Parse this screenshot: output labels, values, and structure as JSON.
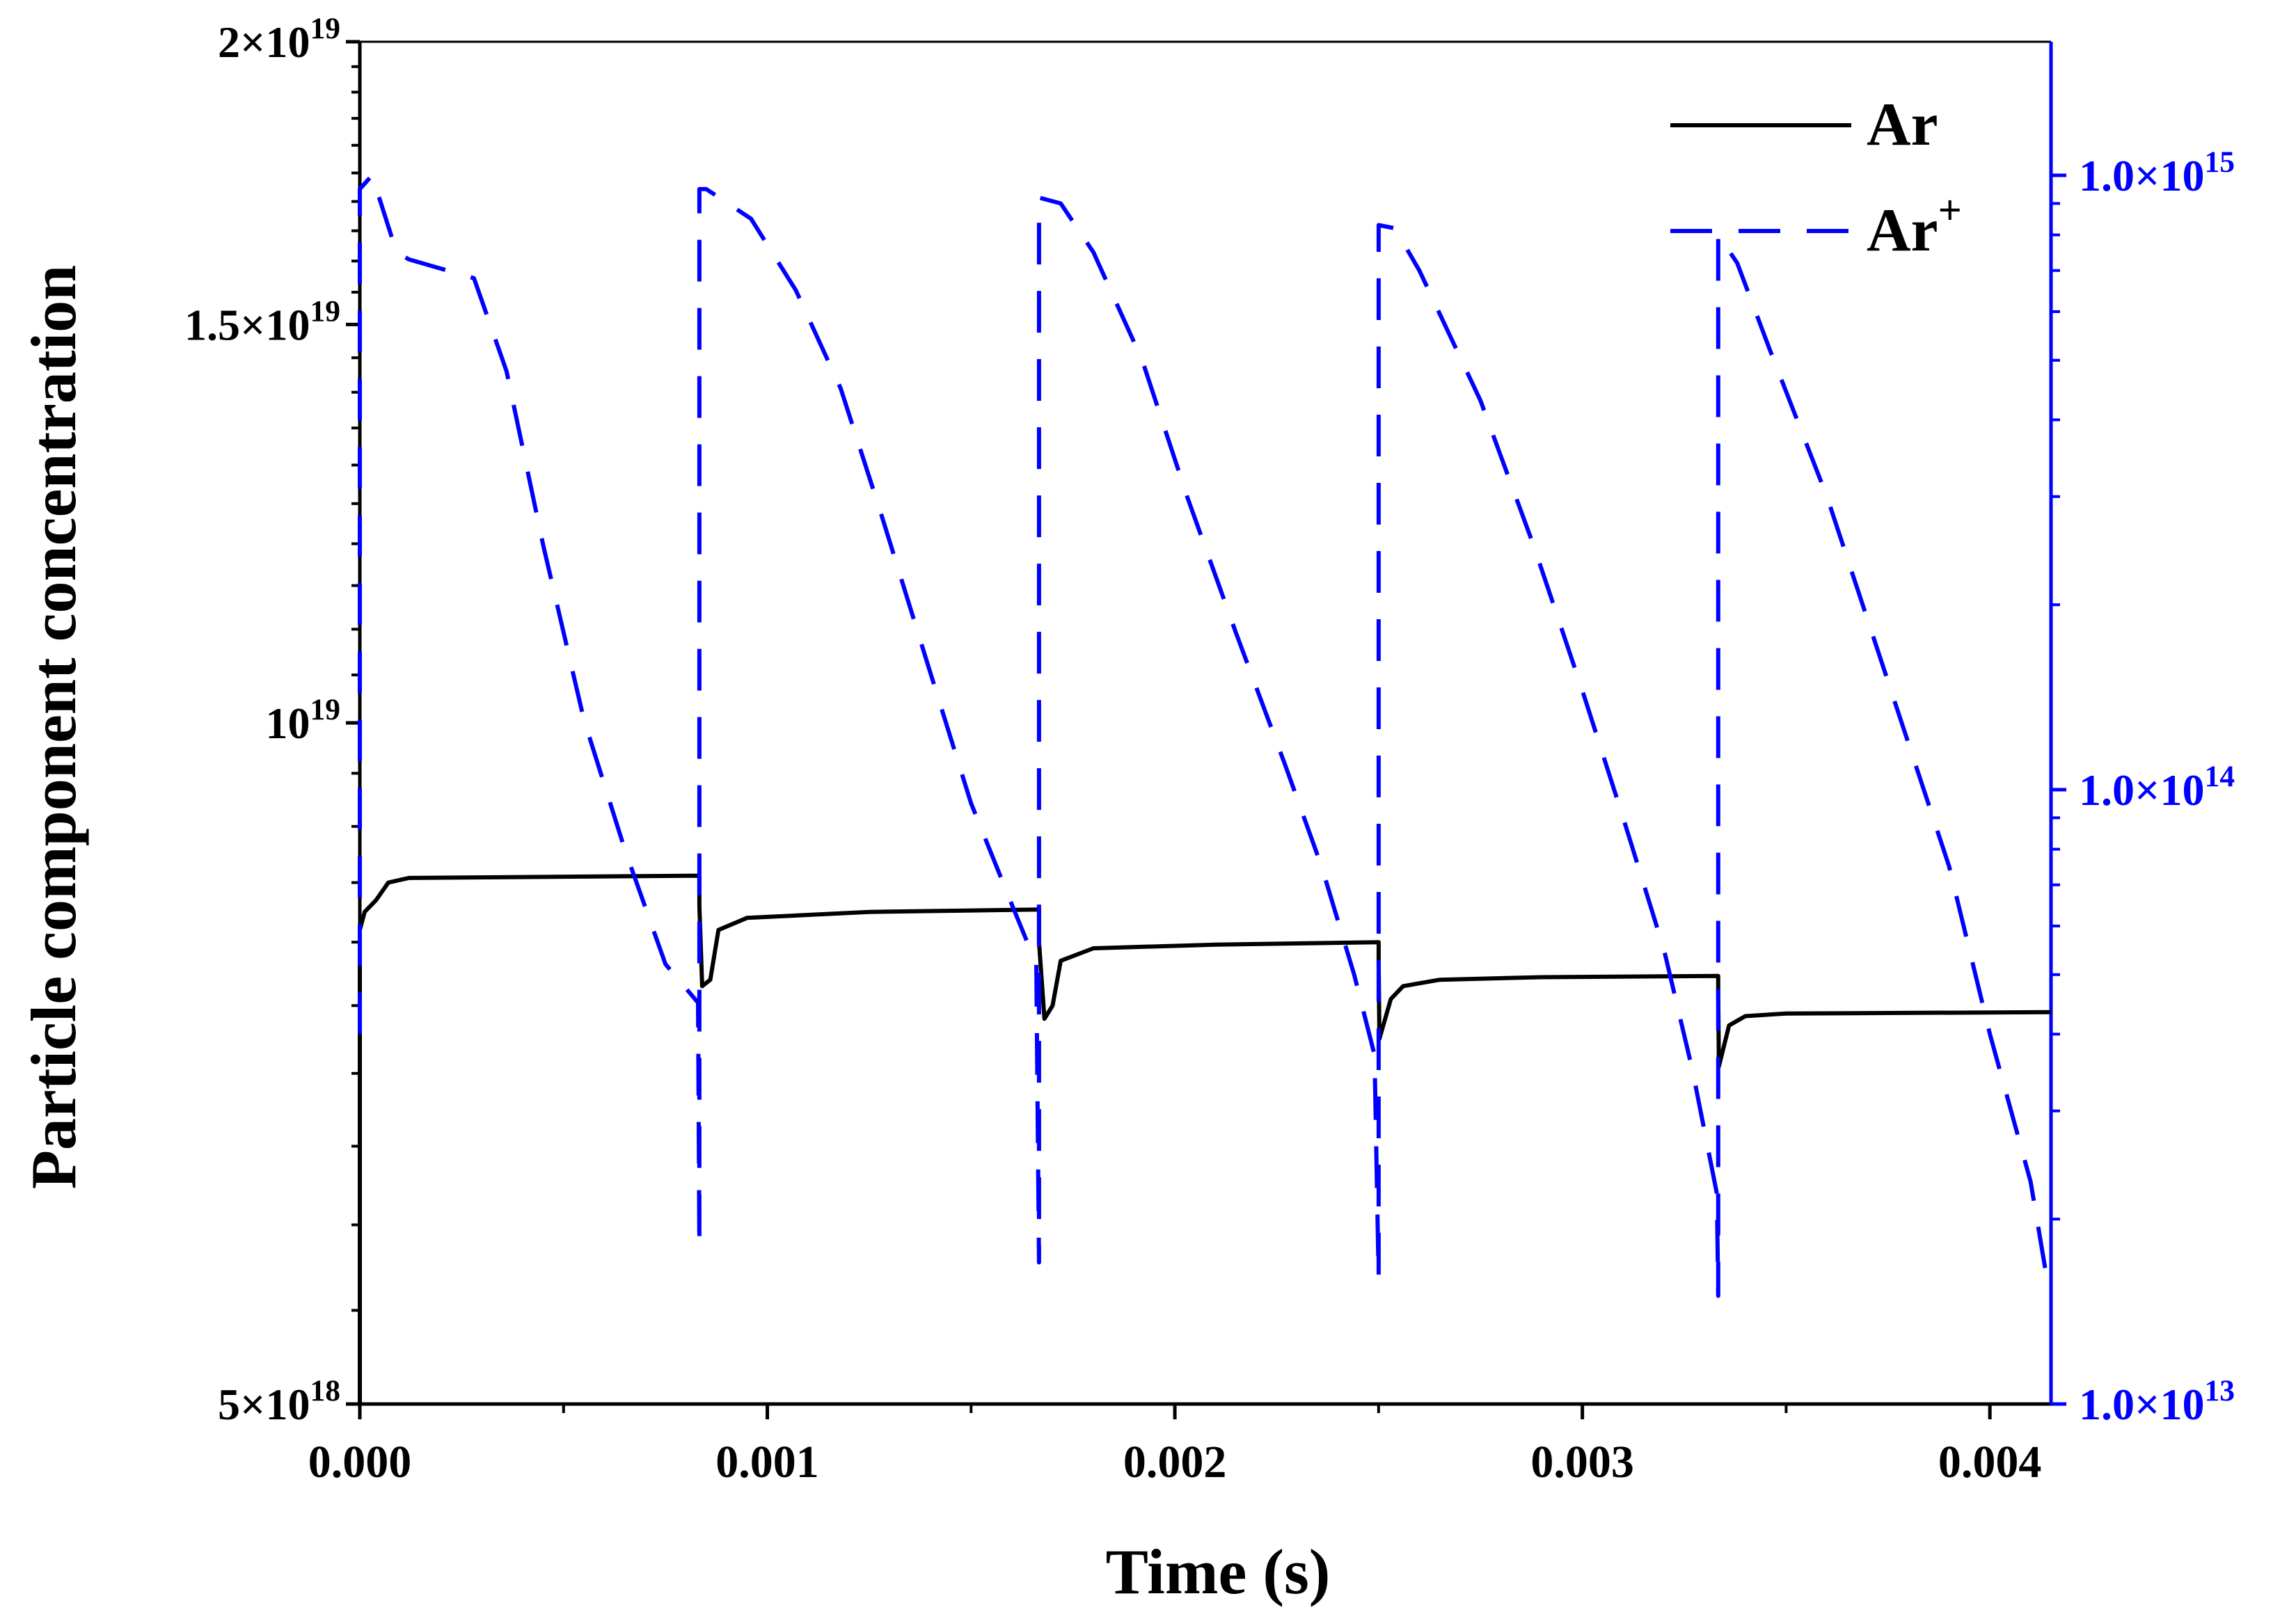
{
  "chart_data": {
    "type": "line",
    "x_axis": {
      "label": "Time (s)",
      "range": [
        0.0,
        0.00415
      ],
      "ticks": [
        0.0,
        0.001,
        0.002,
        0.003,
        0.004
      ],
      "tick_labels": [
        "0.000",
        "0.001",
        "0.002",
        "0.003",
        "0.004"
      ],
      "minor_ticks": [
        0.0005,
        0.0015,
        0.0025,
        0.0035
      ]
    },
    "y_axis_left": {
      "label": "Particle component concentration",
      "scale": "log",
      "range": [
        5e+18,
        2e+19
      ],
      "ticks": [
        5e+18,
        1e+19,
        1.5e+19,
        2e+19
      ],
      "tick_labels": [
        {
          "mantissa": "5×10",
          "exp": "18"
        },
        {
          "mantissa": "10",
          "exp": "19"
        },
        {
          "mantissa": "1.5×10",
          "exp": "19"
        },
        {
          "mantissa": "2×10",
          "exp": "19"
        }
      ],
      "color": "#000000"
    },
    "y_axis_right": {
      "label": "",
      "scale": "log",
      "range": [
        10000000000000.0,
        1650000000000000.0
      ],
      "ticks": [
        10000000000000.0,
        100000000000000.0,
        1000000000000000.0
      ],
      "tick_labels": [
        {
          "mantissa": "1.0×10",
          "exp": "13"
        },
        {
          "mantissa": "1.0×10",
          "exp": "14"
        },
        {
          "mantissa": "1.0×10",
          "exp": "15"
        }
      ],
      "color": "#0000ff"
    },
    "legend": {
      "position": "top-right",
      "entries": [
        {
          "name": "Ar",
          "sup": "",
          "color": "#000000",
          "dash": "solid"
        },
        {
          "name": "Ar",
          "sup": "+",
          "color": "#0000ff",
          "dash": "dashed"
        }
      ]
    },
    "series": [
      {
        "name": "Ar",
        "axis": "left",
        "color": "#000000",
        "style": "solid",
        "points": [
          [
            0.0,
            5e+18
          ],
          [
            0.0,
            8.1e+18
          ],
          [
            1.2e-05,
            8.25e+18
          ],
          [
            4e-05,
            8.35e+18
          ],
          [
            7e-05,
            8.5e+18
          ],
          [
            0.00012,
            8.54e+18
          ],
          [
            0.0008333,
            8.56e+18
          ],
          [
            0.0008333,
            8.3e+18
          ],
          [
            0.00084,
            7.65e+18
          ],
          [
            0.00086,
            7.7e+18
          ],
          [
            0.00088,
            8.1e+18
          ],
          [
            0.00095,
            8.2e+18
          ],
          [
            0.00125,
            8.25e+18
          ],
          [
            0.0016667,
            8.27e+18
          ],
          [
            0.0016667,
            8e+18
          ],
          [
            0.00168,
            7.4e+18
          ],
          [
            0.0017,
            7.5e+18
          ],
          [
            0.00172,
            7.85e+18
          ],
          [
            0.0018,
            7.95e+18
          ],
          [
            0.0021,
            7.98e+18
          ],
          [
            0.0025,
            8e+18
          ],
          [
            0.0025,
            7.85e+18
          ],
          [
            0.002502,
            7.25e+18
          ],
          [
            0.00253,
            7.55e+18
          ],
          [
            0.00256,
            7.65e+18
          ],
          [
            0.00265,
            7.7e+18
          ],
          [
            0.0029,
            7.72e+18
          ],
          [
            0.0033333,
            7.73e+18
          ],
          [
            0.0033333,
            7.6e+18
          ],
          [
            0.003335,
            7.05e+18
          ],
          [
            0.00336,
            7.35e+18
          ],
          [
            0.0034,
            7.42e+18
          ],
          [
            0.0035,
            7.44e+18
          ],
          [
            0.00415,
            7.45e+18
          ]
        ]
      },
      {
        "name": "Ar+",
        "axis": "right",
        "color": "#0000ff",
        "style": "dashed",
        "points": [
          [
            0.0,
            40000000000000.0
          ],
          [
            0.0,
            950000000000000.0
          ],
          [
            3e-05,
            1000000000000000.0
          ],
          [
            9e-05,
            750000000000000.0
          ],
          [
            0.00012,
            730000000000000.0
          ],
          [
            0.00028,
            680000000000000.0
          ],
          [
            0.00036,
            480000000000000.0
          ],
          [
            0.00045,
            250000000000000.0
          ],
          [
            0.00055,
            130000000000000.0
          ],
          [
            0.00065,
            80000000000000.0
          ],
          [
            0.00075,
            52000000000000.0
          ],
          [
            0.00083,
            45000000000000.0
          ],
          [
            0.0008333,
            18000000000000.0
          ],
          [
            0.0008333,
            950000000000000.0
          ],
          [
            0.00085,
            950000000000000.0
          ],
          [
            0.00096,
            850000000000000.0
          ],
          [
            0.00107,
            650000000000000.0
          ],
          [
            0.00118,
            450000000000000.0
          ],
          [
            0.00128,
            280000000000000.0
          ],
          [
            0.0014,
            155000000000000.0
          ],
          [
            0.0015,
            95000000000000.0
          ],
          [
            0.0016,
            65000000000000.0
          ],
          [
            0.00166,
            52000000000000.0
          ],
          [
            0.0016667,
            17000000000000.0
          ],
          [
            0.0016667,
            920000000000000.0
          ],
          [
            0.00172,
            900000000000000.0
          ],
          [
            0.0018,
            750000000000000.0
          ],
          [
            0.00192,
            500000000000000.0
          ],
          [
            0.00203,
            300000000000000.0
          ],
          [
            0.00215,
            180000000000000.0
          ],
          [
            0.00227,
            110000000000000.0
          ],
          [
            0.00236,
            75000000000000.0
          ],
          [
            0.00244,
            50000000000000.0
          ],
          [
            0.00249,
            37000000000000.0
          ],
          [
            0.0025,
            16000000000000.0
          ],
          [
            0.0025,
            830000000000000.0
          ],
          [
            0.00254,
            820000000000000.0
          ],
          [
            0.0026,
            700000000000000.0
          ],
          [
            0.00275,
            430000000000000.0
          ],
          [
            0.00288,
            250000000000000.0
          ],
          [
            0.003,
            145000000000000.0
          ],
          [
            0.0031,
            90000000000000.0
          ],
          [
            0.0032,
            55000000000000.0
          ],
          [
            0.00327,
            35000000000000.0
          ],
          [
            0.00333,
            22000000000000.0
          ],
          [
            0.0033333,
            15000000000000.0
          ],
          [
            0.0033333,
            800000000000000.0
          ],
          [
            0.00338,
            720000000000000.0
          ],
          [
            0.00346,
            520000000000000.0
          ],
          [
            0.0036,
            300000000000000.0
          ],
          [
            0.00375,
            150000000000000.0
          ],
          [
            0.0039,
            75000000000000.0
          ],
          [
            0.004,
            40000000000000.0
          ],
          [
            0.0041,
            23000000000000.0
          ],
          [
            0.00414,
            16000000000000.0
          ]
        ]
      }
    ]
  }
}
